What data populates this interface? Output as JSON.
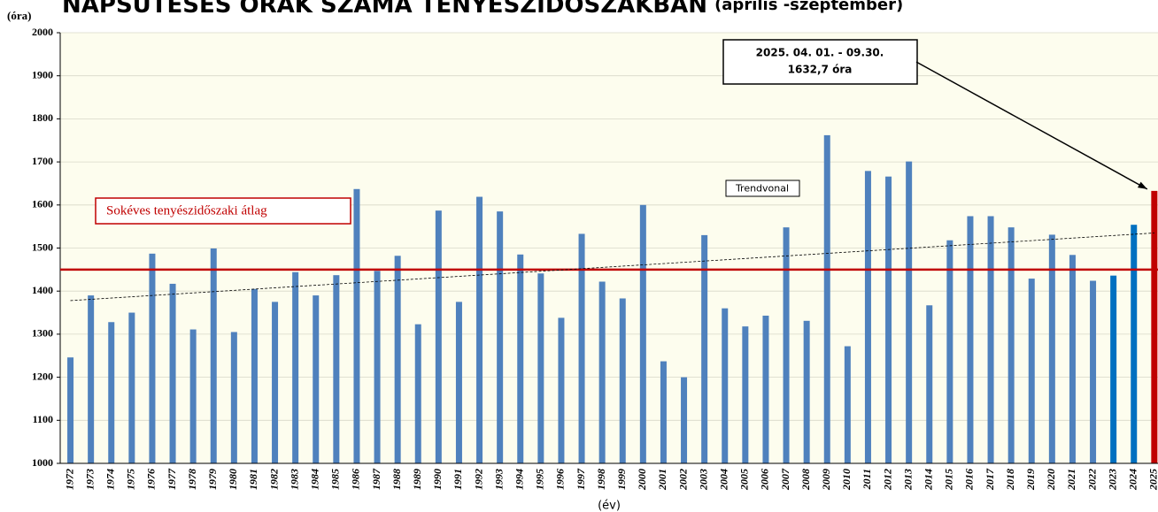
{
  "chart_data": {
    "type": "bar",
    "title": "NAPSÜTÉSES ÓRÁK SZÁMA TENYÉSZIDŐSZAKBAN",
    "subtitle": "(április -szeptember)",
    "y_label": "(óra)",
    "x_label": "(év)",
    "categories": [
      "1972",
      "1973",
      "1974",
      "1975",
      "1976",
      "1977",
      "1978",
      "1979",
      "1980",
      "1981",
      "1982",
      "1983",
      "1984",
      "1985",
      "1986",
      "1987",
      "1988",
      "1989",
      "1990",
      "1991",
      "1992",
      "1993",
      "1994",
      "1995",
      "1996",
      "1997",
      "1998",
      "1999",
      "2000",
      "2001",
      "2002",
      "2003",
      "2004",
      "2005",
      "2006",
      "2007",
      "2008",
      "2009",
      "2010",
      "2011",
      "2012",
      "2013",
      "2014",
      "2015",
      "2016",
      "2017",
      "2018",
      "2019",
      "2020",
      "2021",
      "2022",
      "2023",
      "2024",
      "2025"
    ],
    "values": [
      1246,
      1390,
      1328,
      1350,
      1487,
      1417,
      1311,
      1499,
      1305,
      1405,
      1375,
      1444,
      1390,
      1437,
      1637,
      1447,
      1482,
      1323,
      1587,
      1375,
      1619,
      1585,
      1485,
      1441,
      1338,
      1533,
      1422,
      1383,
      1600,
      1237,
      1200,
      1530,
      1360,
      1318,
      1343,
      1548,
      1331,
      1762,
      1272,
      1679,
      1666,
      1701,
      1367,
      1518,
      1574,
      1574,
      1548,
      1429,
      1531,
      1484,
      1424,
      1436,
      1554,
      1632.7
    ],
    "color": "#4f81bd",
    "highlight_colors": {
      "2023": "#0070c0",
      "2024": "#0070c0",
      "2025": "#c00000"
    },
    "ylim": [
      1000,
      2000
    ],
    "yticks": [
      1000,
      1100,
      1200,
      1300,
      1400,
      1500,
      1600,
      1700,
      1800,
      1900,
      2000
    ],
    "grid": true,
    "reference_line": {
      "label": "Sokéves tenyészidőszaki átlag",
      "value": 1450,
      "color": "#c00000"
    },
    "trendline": {
      "label": "Trendvonal",
      "start": 1378,
      "end": 1535
    },
    "annotation": {
      "lines": [
        "2025. 04. 01. - 09.30.",
        "1632,7 óra"
      ],
      "target": "2025"
    }
  }
}
